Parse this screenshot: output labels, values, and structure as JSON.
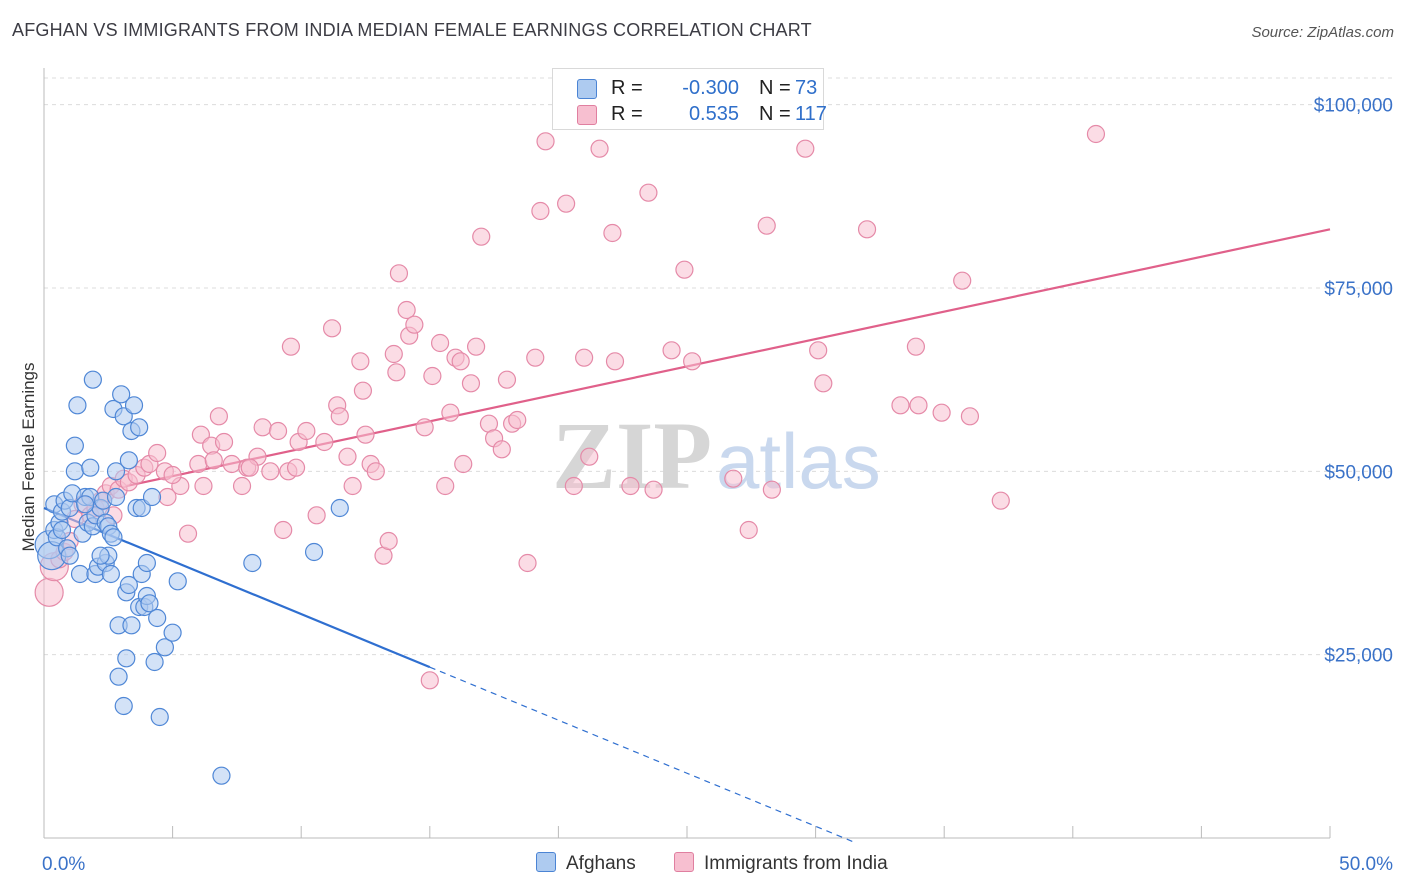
{
  "title": "AFGHAN VS IMMIGRANTS FROM INDIA MEDIAN FEMALE EARNINGS CORRELATION CHART",
  "source": "Source: ZipAtlas.com",
  "watermark": {
    "zip": "ZIP",
    "atlas": "atlas"
  },
  "legend": {
    "rows": [
      {
        "r_label": "R =",
        "r_value": "-0.300",
        "n_label": "N =",
        "n_value": "73",
        "fill": "#aecbf0",
        "stroke": "#4b84d4"
      },
      {
        "r_label": "R =",
        "r_value": "0.535",
        "n_label": "N =",
        "n_value": "117",
        "fill": "#f7bfd0",
        "stroke": "#e07fa0"
      }
    ]
  },
  "bottom_legend": {
    "afghans": "Afghans",
    "india": "Immigrants from India"
  },
  "colors": {
    "afghan_fill": "#aecbf0",
    "afghan_stroke": "#4f87d6",
    "afghan_line": "#2f6fd0",
    "india_fill": "#f7bfd0",
    "india_stroke": "#e58aa8",
    "india_line": "#e0608a",
    "axis_label": "#3a72c8",
    "grid": "#dcdcdc"
  },
  "chart_data": {
    "type": "scatter",
    "ylabel": "Median Female Earnings",
    "xlim": [
      0,
      50
    ],
    "ylim": [
      0,
      105000
    ],
    "x_tick_labels": [
      "0.0%",
      "50.0%"
    ],
    "y_ticks": [
      25000,
      50000,
      75000,
      100000
    ],
    "y_tick_labels": [
      "$25,000",
      "$50,000",
      "$75,000",
      "$100,000"
    ],
    "grid": true,
    "series": [
      {
        "name": "Afghans",
        "points": [
          [
            0.2,
            40000
          ],
          [
            0.3,
            38500
          ],
          [
            0.4,
            42000
          ],
          [
            0.4,
            45500
          ],
          [
            0.5,
            41000
          ],
          [
            0.6,
            43000
          ],
          [
            0.7,
            44500
          ],
          [
            0.8,
            46000
          ],
          [
            0.9,
            39500
          ],
          [
            1.0,
            45000
          ],
          [
            1.1,
            47000
          ],
          [
            1.2,
            50000
          ],
          [
            1.2,
            53500
          ],
          [
            1.3,
            59000
          ],
          [
            1.4,
            36000
          ],
          [
            1.5,
            41500
          ],
          [
            1.6,
            46500
          ],
          [
            1.7,
            43000
          ],
          [
            1.8,
            50500
          ],
          [
            1.8,
            46500
          ],
          [
            1.9,
            42500
          ],
          [
            1.9,
            62500
          ],
          [
            2.0,
            44000
          ],
          [
            2.0,
            36000
          ],
          [
            2.1,
            37000
          ],
          [
            2.2,
            45000
          ],
          [
            2.3,
            46000
          ],
          [
            2.4,
            43000
          ],
          [
            2.4,
            37500
          ],
          [
            2.5,
            38500
          ],
          [
            2.5,
            42500
          ],
          [
            2.6,
            36000
          ],
          [
            2.6,
            41500
          ],
          [
            2.7,
            58500
          ],
          [
            2.8,
            50000
          ],
          [
            2.8,
            46500
          ],
          [
            2.9,
            22000
          ],
          [
            2.9,
            29000
          ],
          [
            3.0,
            60500
          ],
          [
            3.1,
            18000
          ],
          [
            3.1,
            57500
          ],
          [
            3.2,
            33500
          ],
          [
            3.3,
            51500
          ],
          [
            3.3,
            34500
          ],
          [
            3.4,
            29000
          ],
          [
            3.4,
            55500
          ],
          [
            3.5,
            59000
          ],
          [
            3.6,
            45000
          ],
          [
            3.7,
            56000
          ],
          [
            3.7,
            31500
          ],
          [
            3.8,
            36000
          ],
          [
            3.8,
            45000
          ],
          [
            3.9,
            31500
          ],
          [
            4.0,
            37500
          ],
          [
            4.0,
            33000
          ],
          [
            4.1,
            32000
          ],
          [
            4.2,
            46500
          ],
          [
            4.3,
            24000
          ],
          [
            4.4,
            30000
          ],
          [
            4.5,
            16500
          ],
          [
            4.7,
            26000
          ],
          [
            5.0,
            28000
          ],
          [
            5.2,
            35000
          ],
          [
            6.9,
            8500
          ],
          [
            8.1,
            37500
          ],
          [
            10.5,
            39000
          ],
          [
            11.5,
            45000
          ],
          [
            2.2,
            38500
          ],
          [
            3.2,
            24500
          ],
          [
            1.0,
            38500
          ],
          [
            0.7,
            42000
          ],
          [
            1.6,
            45500
          ],
          [
            2.7,
            41000
          ]
        ],
        "trend": {
          "x0": 0,
          "y0": 45000,
          "x1": 15,
          "y1": 23300,
          "dashed_to_x": 31.5
        }
      },
      {
        "name": "Immigrants from India",
        "points": [
          [
            0.2,
            33500
          ],
          [
            0.4,
            37000
          ],
          [
            0.6,
            38000
          ],
          [
            0.8,
            39000
          ],
          [
            1.0,
            40500
          ],
          [
            1.2,
            43500
          ],
          [
            1.5,
            45500
          ],
          [
            1.8,
            44000
          ],
          [
            2.0,
            45000
          ],
          [
            2.2,
            46000
          ],
          [
            2.4,
            47000
          ],
          [
            2.6,
            48000
          ],
          [
            2.9,
            47500
          ],
          [
            3.1,
            49000
          ],
          [
            3.3,
            48500
          ],
          [
            3.6,
            49500
          ],
          [
            3.9,
            50500
          ],
          [
            4.1,
            51000
          ],
          [
            4.4,
            52500
          ],
          [
            4.7,
            50000
          ],
          [
            4.8,
            46500
          ],
          [
            5.3,
            48000
          ],
          [
            5.6,
            41500
          ],
          [
            6.0,
            51000
          ],
          [
            6.1,
            55000
          ],
          [
            6.2,
            48000
          ],
          [
            6.5,
            53500
          ],
          [
            6.8,
            57500
          ],
          [
            7.0,
            54000
          ],
          [
            7.3,
            51000
          ],
          [
            7.7,
            48000
          ],
          [
            7.9,
            50500
          ],
          [
            8.3,
            52000
          ],
          [
            8.5,
            56000
          ],
          [
            8.8,
            50000
          ],
          [
            9.1,
            55500
          ],
          [
            9.3,
            42000
          ],
          [
            9.5,
            50000
          ],
          [
            9.6,
            67000
          ],
          [
            9.9,
            54000
          ],
          [
            10.2,
            55500
          ],
          [
            10.6,
            44000
          ],
          [
            10.9,
            54000
          ],
          [
            11.2,
            69500
          ],
          [
            11.4,
            59000
          ],
          [
            11.5,
            57500
          ],
          [
            11.8,
            52000
          ],
          [
            12.0,
            48000
          ],
          [
            12.3,
            65000
          ],
          [
            12.4,
            61000
          ],
          [
            12.7,
            51000
          ],
          [
            12.9,
            50000
          ],
          [
            13.2,
            38500
          ],
          [
            13.4,
            40500
          ],
          [
            13.6,
            66000
          ],
          [
            13.7,
            63500
          ],
          [
            13.8,
            77000
          ],
          [
            14.1,
            72000
          ],
          [
            14.2,
            68500
          ],
          [
            14.4,
            70000
          ],
          [
            14.8,
            56000
          ],
          [
            15.1,
            63000
          ],
          [
            15.4,
            67500
          ],
          [
            15.6,
            48000
          ],
          [
            15.8,
            58000
          ],
          [
            16.0,
            65500
          ],
          [
            16.2,
            65000
          ],
          [
            16.3,
            51000
          ],
          [
            16.6,
            62000
          ],
          [
            16.8,
            67000
          ],
          [
            17.0,
            82000
          ],
          [
            17.3,
            56500
          ],
          [
            17.5,
            54500
          ],
          [
            17.8,
            53000
          ],
          [
            18.0,
            62500
          ],
          [
            18.2,
            56500
          ],
          [
            18.4,
            57000
          ],
          [
            18.8,
            37500
          ],
          [
            19.1,
            65500
          ],
          [
            19.3,
            85500
          ],
          [
            19.5,
            95000
          ],
          [
            20.3,
            86500
          ],
          [
            20.6,
            48000
          ],
          [
            21.0,
            65500
          ],
          [
            21.2,
            52000
          ],
          [
            21.6,
            94000
          ],
          [
            22.1,
            82500
          ],
          [
            22.2,
            65000
          ],
          [
            22.8,
            48000
          ],
          [
            23.5,
            88000
          ],
          [
            23.7,
            47500
          ],
          [
            24.4,
            66500
          ],
          [
            24.9,
            77500
          ],
          [
            25.2,
            65000
          ],
          [
            26.8,
            49000
          ],
          [
            27.4,
            42000
          ],
          [
            28.1,
            83500
          ],
          [
            28.3,
            47500
          ],
          [
            29.6,
            94000
          ],
          [
            30.1,
            66500
          ],
          [
            30.3,
            62000
          ],
          [
            32.0,
            83000
          ],
          [
            33.3,
            59000
          ],
          [
            33.9,
            67000
          ],
          [
            34.0,
            59000
          ],
          [
            34.9,
            58000
          ],
          [
            35.7,
            76000
          ],
          [
            36.0,
            57500
          ],
          [
            37.2,
            46000
          ],
          [
            40.9,
            96000
          ],
          [
            15.0,
            21500
          ],
          [
            8.0,
            50500
          ],
          [
            6.6,
            51500
          ],
          [
            5.0,
            49500
          ],
          [
            9.8,
            50500
          ],
          [
            12.5,
            55000
          ],
          [
            2.7,
            44000
          ]
        ],
        "trend": {
          "x0": 3.2,
          "y0": 48000,
          "x1": 50,
          "y1": 83000
        }
      }
    ]
  }
}
